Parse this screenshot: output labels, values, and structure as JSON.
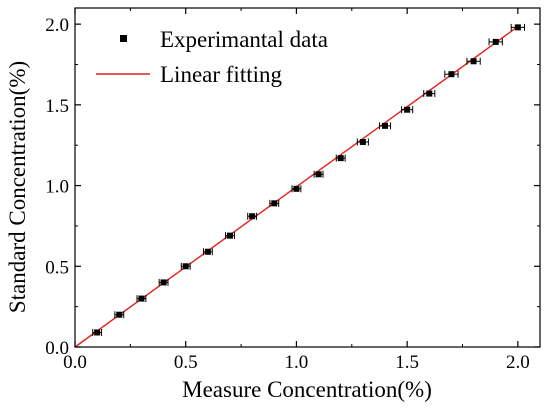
{
  "chart_data": {
    "type": "scatter",
    "xlabel": "Measure  Concentration(%)",
    "ylabel": "Standard Concentration(%)",
    "xlim": [
      0.0,
      2.1
    ],
    "ylim": [
      0.0,
      2.1
    ],
    "x_ticks": [
      "0.0",
      "0.5",
      "1.0",
      "1.5",
      "2.0"
    ],
    "y_ticks": [
      "0.0",
      "0.5",
      "1.0",
      "1.5",
      "2.0"
    ],
    "x_tick_values": [
      0.0,
      0.5,
      1.0,
      1.5,
      2.0
    ],
    "y_tick_values": [
      0.0,
      0.5,
      1.0,
      1.5,
      2.0
    ],
    "grid": false,
    "legend_position": "top-left",
    "series": [
      {
        "name": "Experimantal data",
        "kind": "points",
        "marker": "square",
        "color": "#000000",
        "x": [
          0.1,
          0.2,
          0.3,
          0.4,
          0.5,
          0.6,
          0.7,
          0.8,
          0.9,
          1.0,
          1.1,
          1.2,
          1.3,
          1.4,
          1.5,
          1.6,
          1.7,
          1.8,
          1.9,
          2.0
        ],
        "y": [
          0.09,
          0.2,
          0.3,
          0.4,
          0.5,
          0.59,
          0.69,
          0.81,
          0.89,
          0.98,
          1.07,
          1.17,
          1.27,
          1.37,
          1.47,
          1.57,
          1.69,
          1.77,
          1.89,
          1.98
        ],
        "x_error": [
          0.02,
          0.02,
          0.02,
          0.02,
          0.02,
          0.02,
          0.02,
          0.02,
          0.02,
          0.02,
          0.02,
          0.02,
          0.025,
          0.025,
          0.025,
          0.025,
          0.03,
          0.03,
          0.03,
          0.03
        ]
      },
      {
        "name": "Linear fitting",
        "kind": "line",
        "color": "#e8201c",
        "x": [
          0.0,
          2.0
        ],
        "y": [
          0.0,
          1.985
        ]
      }
    ]
  }
}
